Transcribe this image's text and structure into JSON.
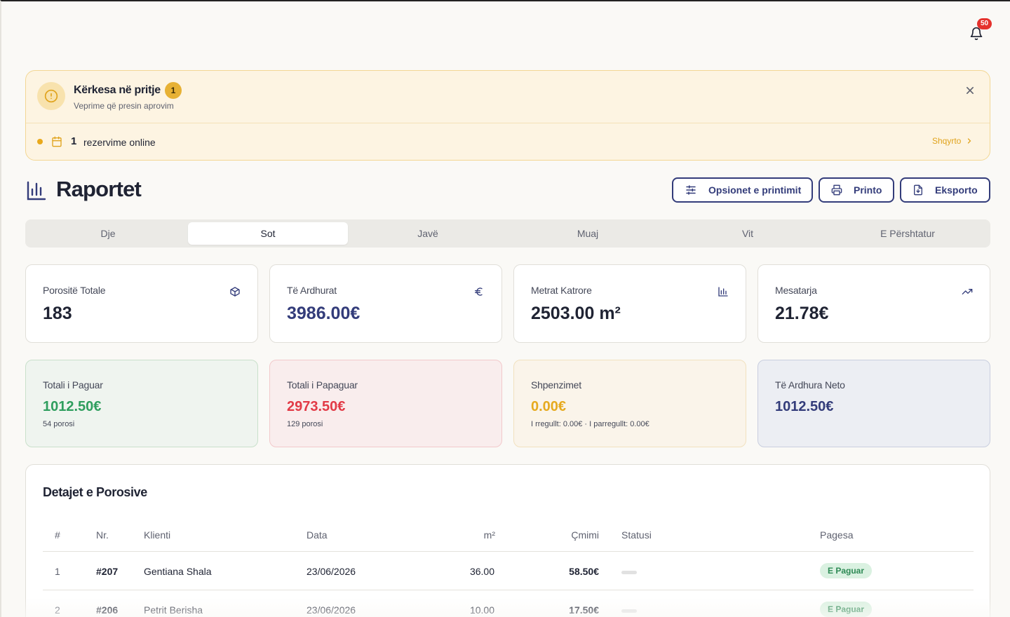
{
  "header": {
    "notifications_count": "50"
  },
  "alert": {
    "title": "Kërkesa në pritje",
    "badge": "1",
    "subtitle": "Veprime që presin aprovim",
    "item_count": "1",
    "item_text": "rezervime online",
    "link": "Shqyrto"
  },
  "page": {
    "title": "Raportet",
    "buttons": {
      "print_options": "Opsionet e printimit",
      "print": "Printo",
      "export": "Eksporto"
    }
  },
  "tabs": [
    "Dje",
    "Sot",
    "Javë",
    "Muaj",
    "Vit",
    "E Përshtatur"
  ],
  "active_tab": "Sot",
  "stats": [
    {
      "label": "Porositë Totale",
      "value": "183",
      "icon": "package-icon"
    },
    {
      "label": "Të Ardhurat",
      "value": "3986.00€",
      "icon": "euro-icon"
    },
    {
      "label": "Metrat Katrore",
      "value": "2503.00 m²",
      "icon": "bar-chart-icon"
    },
    {
      "label": "Mesatarja",
      "value": "21.78€",
      "icon": "trending-up-icon"
    }
  ],
  "summary": [
    {
      "label": "Totali i Paguar",
      "value": "1012.50€",
      "note": "54 porosi",
      "color": "#2f9e5e"
    },
    {
      "label": "Totali i Papaguar",
      "value": "2973.50€",
      "note": "129 porosi",
      "color": "#e23a46"
    },
    {
      "label": "Shpenzimet",
      "value": "0.00€",
      "note": "I rregullt: 0.00€ · I parregullt: 0.00€",
      "color": "#e6aa1f"
    },
    {
      "label": "Të Ardhura Neto",
      "value": "1012.50€",
      "note": "",
      "color": "#333c7a"
    }
  ],
  "orders": {
    "title": "Detajet e Porosive",
    "columns": [
      "#",
      "Nr.",
      "Klienti",
      "Data",
      "m²",
      "Çmimi",
      "Statusi",
      "Pagesa"
    ],
    "rows": [
      {
        "idx": "1",
        "nr": "#207",
        "client": "Gentiana Shala",
        "date": "23/06/2026",
        "m2": "36.00",
        "price": "58.50€",
        "payment": "E Paguar"
      },
      {
        "idx": "2",
        "nr": "#206",
        "client": "Petrit Berisha",
        "date": "23/06/2026",
        "m2": "10.00",
        "price": "17.50€",
        "payment": "E Paguar"
      }
    ]
  },
  "colors": {
    "primary": "#333c7a",
    "accent": "#e6aa1f",
    "success": "#2f9e5e",
    "danger": "#e23a46"
  }
}
